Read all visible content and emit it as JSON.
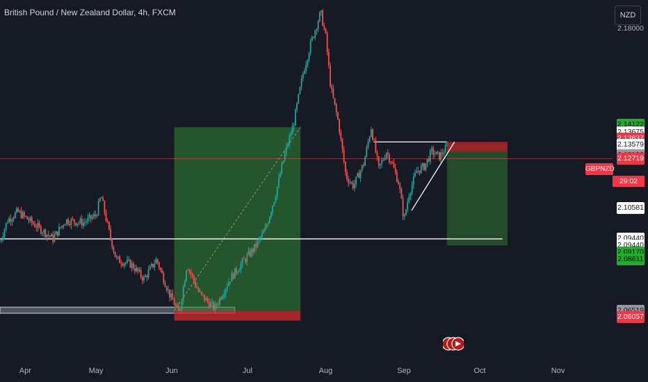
{
  "header": {
    "title": "British Pound / New Zealand Dollar, 4h, FXCM",
    "currency": "NZD",
    "symbol_tag": "GBPNZD",
    "countdown": "29:02"
  },
  "colors": {
    "background": "#161a25",
    "up": "#26a69a",
    "down": "#ef5350",
    "profit_zone": "#2e7d32",
    "loss_zone": "#c62828",
    "green_label": "#22ab2c",
    "red_label": "#f23645",
    "white_label": "#ffffff",
    "gray_label": "#9598a1"
  },
  "chart_data": {
    "type": "candlestick",
    "title": "British Pound / New Zealand Dollar, 4h, FXCM",
    "y_axis": {
      "unit": "NZD",
      "range": [
        2.045,
        2.192
      ],
      "tick_labels": [
        "2.18000"
      ]
    },
    "x_axis": {
      "tick_labels": [
        "Apr",
        "May",
        "Jun",
        "Jul",
        "Aug",
        "Sep",
        "Oct",
        "Nov"
      ]
    },
    "grid": false,
    "last_price": 2.12719,
    "price_trace": [
      {
        "date": "Mar 25",
        "price": 2.0935
      },
      {
        "date": "Mar 28",
        "price": 2.102
      },
      {
        "date": "Apr 01",
        "price": 2.1055
      },
      {
        "date": "Apr 08",
        "price": 2.1
      },
      {
        "date": "Apr 15",
        "price": 2.0945
      },
      {
        "date": "Apr 20",
        "price": 2.102
      },
      {
        "date": "Apr 27",
        "price": 2.101
      },
      {
        "date": "May 02",
        "price": 2.104
      },
      {
        "date": "May 04",
        "price": 2.112
      },
      {
        "date": "May 07",
        "price": 2.098
      },
      {
        "date": "May 10",
        "price": 2.086
      },
      {
        "date": "May 16",
        "price": 2.084
      },
      {
        "date": "May 21",
        "price": 2.078
      },
      {
        "date": "May 26",
        "price": 2.086
      },
      {
        "date": "May 31",
        "price": 2.072
      },
      {
        "date": "Jun 04",
        "price": 2.064
      },
      {
        "date": "Jun 07",
        "price": 2.084
      },
      {
        "date": "Jun 12",
        "price": 2.072
      },
      {
        "date": "Jun 18",
        "price": 2.066
      },
      {
        "date": "Jun 24",
        "price": 2.078
      },
      {
        "date": "Jun 30",
        "price": 2.086
      },
      {
        "date": "Jul 04",
        "price": 2.091
      },
      {
        "date": "Jul 08",
        "price": 2.098
      },
      {
        "date": "Jul 12",
        "price": 2.112
      },
      {
        "date": "Jul 16",
        "price": 2.13
      },
      {
        "date": "Jul 19",
        "price": 2.14
      },
      {
        "date": "Jul 23",
        "price": 2.162
      },
      {
        "date": "Jul 26",
        "price": 2.174
      },
      {
        "date": "Jul 30",
        "price": 2.187
      },
      {
        "date": "Aug 01",
        "price": 2.177
      },
      {
        "date": "Aug 03",
        "price": 2.156
      },
      {
        "date": "Aug 06",
        "price": 2.142
      },
      {
        "date": "Aug 09",
        "price": 2.12
      },
      {
        "date": "Aug 12",
        "price": 2.116
      },
      {
        "date": "Aug 16",
        "price": 2.125
      },
      {
        "date": "Aug 19",
        "price": 2.14
      },
      {
        "date": "Aug 22",
        "price": 2.123
      },
      {
        "date": "Aug 25",
        "price": 2.13
      },
      {
        "date": "Aug 27",
        "price": 2.126
      },
      {
        "date": "Aug 30",
        "price": 2.117
      },
      {
        "date": "Sep 01",
        "price": 2.102
      },
      {
        "date": "Sep 03",
        "price": 2.113
      },
      {
        "date": "Sep 06",
        "price": 2.122
      },
      {
        "date": "Sep 09",
        "price": 2.124
      },
      {
        "date": "Sep 12",
        "price": 2.13
      },
      {
        "date": "Sep 15",
        "price": 2.128
      },
      {
        "date": "Sep 18",
        "price": 2.1319
      }
    ],
    "annotations": {
      "long_position": {
        "start": "Jun 02",
        "end": "Jul 22",
        "entry": 2.0651,
        "target": 2.14,
        "stop": 2.061
      },
      "short_position": {
        "start": "Sep 18",
        "end": "Oct 12",
        "entry": 2.13,
        "stop": 2.134,
        "target": 2.0917,
        "entry_line": 2.1272
      },
      "horizontal_lines": [
        {
          "price": 2.0944,
          "from": "Mar 25",
          "to": "Oct 10"
        },
        {
          "price": 2.134,
          "from": "Aug 20",
          "to": "Sep 18"
        }
      ],
      "support_zone": {
        "from_price": 2.064,
        "to_price": 2.0665,
        "start": "Mar 25",
        "end": "Jun 26"
      },
      "trend_line": {
        "from_date": "Sep 04",
        "from_price": 2.106,
        "to_date": "Sep 21",
        "to_price": 2.134
      }
    },
    "price_labels": [
      {
        "text": "2.14122",
        "style": "green",
        "price": 2.1412
      },
      {
        "text": "2.13675",
        "style": "white",
        "price": 2.138
      },
      {
        "text": "2.13637",
        "style": "red",
        "price": 2.1355
      },
      {
        "text": "2.13579",
        "style": "white",
        "price": 2.1327
      },
      {
        "text": "2.13572",
        "style": "plain",
        "price": 2.1306
      },
      {
        "text": "2.13193",
        "style": "gray",
        "price": 2.1285
      },
      {
        "text": "2.12719",
        "style": "red",
        "price": 2.1272
      },
      {
        "text": "2.10581",
        "style": "white",
        "price": 2.1069
      },
      {
        "text": "2.09440",
        "style": "white",
        "price": 2.0944
      },
      {
        "text": "2.09440",
        "style": "white",
        "price": 2.0916
      },
      {
        "text": "2.09170",
        "style": "green",
        "price": 2.0888
      },
      {
        "text": "2.08611",
        "style": "green",
        "price": 2.0859
      },
      {
        "text": "2.06519",
        "style": "gray",
        "price": 2.0651
      },
      {
        "text": "2.06057",
        "style": "red",
        "price": 2.0624
      }
    ]
  }
}
